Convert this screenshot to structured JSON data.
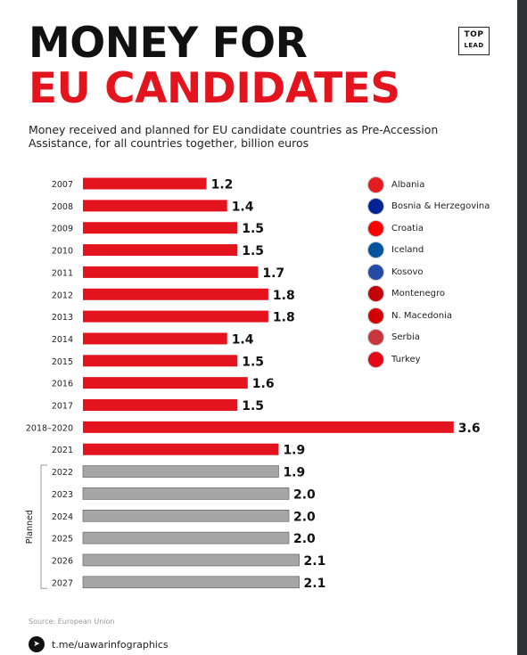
{
  "header": {
    "title_line1": "MONEY FOR",
    "title_line2": "EU CANDIDATES",
    "logo_line1": "TOP",
    "logo_line2": "LEAD",
    "subtitle": "Money received and planned for EU candidate countries as Pre-Accession Assistance, for all countries together, billion euros"
  },
  "colors": {
    "accent": "#e3141e",
    "planned": "#a6a6a6",
    "text": "#111111"
  },
  "chart_data": {
    "type": "bar",
    "orientation": "horizontal",
    "categories": [
      "2007",
      "2008",
      "2009",
      "2010",
      "2011",
      "2012",
      "2013",
      "2014",
      "2015",
      "2016",
      "2017",
      "2018–2020",
      "2021",
      "2022",
      "2023",
      "2024",
      "2025",
      "2026",
      "2027"
    ],
    "values": [
      1.2,
      1.4,
      1.5,
      1.5,
      1.7,
      1.8,
      1.8,
      1.4,
      1.5,
      1.6,
      1.5,
      3.6,
      1.9,
      1.9,
      2.0,
      2.0,
      2.0,
      2.1,
      2.1
    ],
    "value_labels": [
      "1.2",
      "1.4",
      "1.5",
      "1.5",
      "1.7",
      "1.8",
      "1.8",
      "1.4",
      "1.5",
      "1.6",
      "1.5",
      "3.6",
      "1.9",
      "1.9",
      "2.0",
      "2.0",
      "2.0",
      "2.1",
      "2.1"
    ],
    "planned_from_index": 13,
    "planned_label": "Planned",
    "title": "",
    "xlabel": "",
    "ylabel": ""
  },
  "legend": [
    {
      "label": "Albania",
      "icon": "albania-flag-icon",
      "color": "#e41e20"
    },
    {
      "label": "Bosnia & Herzegovina",
      "icon": "bosnia-flag-icon",
      "color": "#002395"
    },
    {
      "label": "Croatia",
      "icon": "croatia-flag-icon",
      "color": "#ff0000"
    },
    {
      "label": "Iceland",
      "icon": "iceland-flag-icon",
      "color": "#02529c"
    },
    {
      "label": "Kosovo",
      "icon": "kosovo-flag-icon",
      "color": "#244aa5"
    },
    {
      "label": "Montenegro",
      "icon": "montenegro-flag-icon",
      "color": "#c40308"
    },
    {
      "label": "N. Macedonia",
      "icon": "macedonia-flag-icon",
      "color": "#d20000"
    },
    {
      "label": "Serbia",
      "icon": "serbia-flag-icon",
      "color": "#c6363c"
    },
    {
      "label": "Turkey",
      "icon": "turkey-flag-icon",
      "color": "#e30a17"
    }
  ],
  "footer": {
    "source": "Source: European Union",
    "telegram": "t.me/uawarinfographics"
  }
}
